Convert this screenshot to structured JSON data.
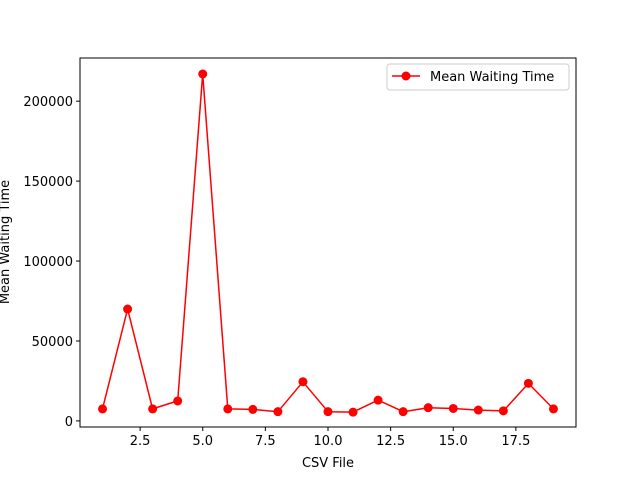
{
  "chart_data": {
    "type": "line",
    "xlabel": "CSV File",
    "ylabel": "Mean Waiting Time",
    "xlim": [
      0.1,
      19.9
    ],
    "ylim": [
      -3800,
      227000
    ],
    "x_ticks": [
      2.5,
      5.0,
      7.5,
      10.0,
      12.5,
      15.0,
      17.5
    ],
    "x_tick_labels": [
      "2.5",
      "5.0",
      "7.5",
      "10.0",
      "12.5",
      "15.0",
      "17.5"
    ],
    "y_ticks": [
      0,
      50000,
      100000,
      150000,
      200000
    ],
    "y_tick_labels": [
      "0",
      "50000",
      "100000",
      "150000",
      "200000"
    ],
    "grid": false,
    "legend_position": "top-right",
    "series": [
      {
        "name": "Mean Waiting Time",
        "color": "#ff0000",
        "marker": "circle",
        "x": [
          1,
          2,
          3,
          4,
          5,
          6,
          7,
          8,
          9,
          10,
          11,
          12,
          13,
          14,
          15,
          16,
          17,
          18,
          19
        ],
        "values": [
          7500,
          70000,
          7500,
          12500,
          217000,
          7500,
          7200,
          5800,
          24500,
          5800,
          5500,
          13000,
          5800,
          8300,
          7800,
          6800,
          6300,
          23500,
          7500
        ]
      }
    ]
  }
}
